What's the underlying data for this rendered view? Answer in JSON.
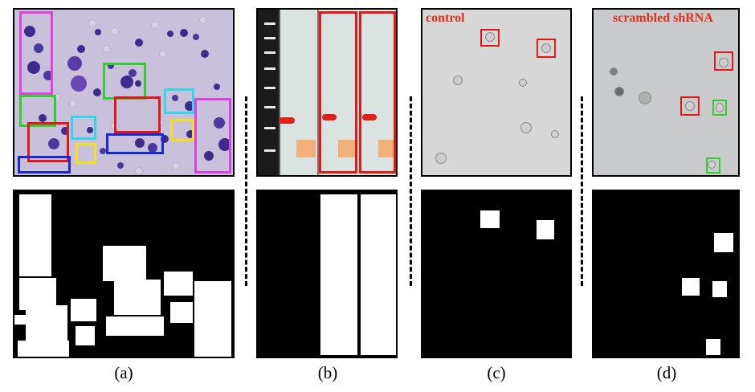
{
  "panels": {
    "a": {
      "caption": "(a)"
    },
    "b": {
      "caption": "(b)"
    },
    "c": {
      "caption": "(c)",
      "image_label": "control"
    },
    "d": {
      "caption": "(d)",
      "image_label": "scrambled shRNA"
    }
  },
  "colors": {
    "box_magenta": "#e040e0",
    "box_green": "#33cc33",
    "box_red": "#e01818",
    "box_cyan": "#33d6e6",
    "box_yellow": "#f0e020",
    "box_blue": "#1a2ad0",
    "label_red": "#e0301e",
    "mask_background": "#000000",
    "mask_foreground": "#ffffff"
  }
}
